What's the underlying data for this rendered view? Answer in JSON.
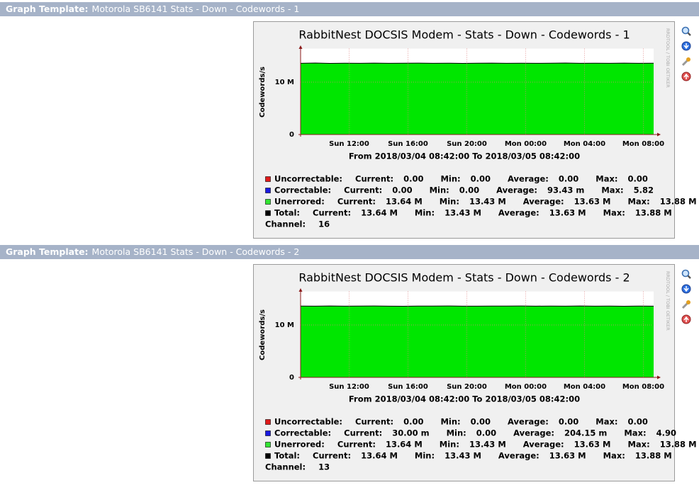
{
  "panels": [
    {
      "header": {
        "label": "Graph Template:",
        "name": "Motorola SB6141 Stats - Down - Codewords - 1"
      },
      "chart_data": {
        "type": "area",
        "title": "RabbitNest DOCSIS Modem - Stats - Down - Codewords - 1",
        "y_label": "Codewords/s",
        "x_label": "From 2018/03/04 08:42:00 To 2018/03/05 08:42:00",
        "watermark": "RRDTOOL / TOBI OETIKER",
        "xlim": [
          0,
          24
        ],
        "xticks": [
          {
            "value": 3.3,
            "label": "Sun 12:00"
          },
          {
            "value": 7.3,
            "label": "Sun 16:00"
          },
          {
            "value": 11.3,
            "label": "Sun 20:00"
          },
          {
            "value": 15.3,
            "label": "Mon 00:00"
          },
          {
            "value": 19.3,
            "label": "Mon 04:00"
          },
          {
            "value": 23.3,
            "label": "Mon 08:00"
          }
        ],
        "ylim": [
          0,
          16000000
        ],
        "yticks": [
          0,
          {
            "value": 10000000,
            "label": "10 M"
          }
        ],
        "grid": true,
        "x": [
          0,
          1,
          2,
          3,
          4,
          5,
          6,
          7,
          8,
          9,
          10,
          11,
          12,
          13,
          14,
          15,
          16,
          17,
          18,
          19,
          20,
          21,
          22,
          23,
          24
        ],
        "series": [
          {
            "color": "#00e600",
            "values": [
              13600000,
              13650000,
              13580000,
              13620000,
              13600000,
              13640000,
              13590000,
              13610000,
              13630000,
              13600000,
              13620000,
              13580000,
              13610000,
              13640000,
              13600000,
              13620000,
              13590000,
              13610000,
              13650000,
              13600000,
              13620000,
              13590000,
              13630000,
              13600000,
              13610000
            ]
          },
          {
            "color": "#000000",
            "values": [
              13600000,
              13650000,
              13580000,
              13620000,
              13600000,
              13640000,
              13590000,
              13610000,
              13630000,
              13600000,
              13620000,
              13580000,
              13610000,
              13640000,
              13600000,
              13620000,
              13590000,
              13610000,
              13650000,
              13600000,
              13620000,
              13590000,
              13630000,
              13600000,
              13610000
            ]
          }
        ]
      },
      "legend": [
        {
          "name": "Uncorrectable:",
          "color": "#e01a1a",
          "stats": [
            [
              "Current:",
              "0.00"
            ],
            [
              "Min:",
              "0.00"
            ],
            [
              "Average:",
              "0.00"
            ],
            [
              "Max:",
              "0.00"
            ]
          ]
        },
        {
          "name": "Correctable:",
          "color": "#1a1ae0",
          "stats": [
            [
              "Current:",
              "0.00"
            ],
            [
              "Min:",
              "0.00"
            ],
            [
              "Average:",
              "93.43 m"
            ],
            [
              "Max:",
              "5.82"
            ]
          ]
        },
        {
          "name": "Unerrored:",
          "color": "#33e533",
          "stats": [
            [
              "Current:",
              "13.64 M"
            ],
            [
              "Min:",
              "13.43 M"
            ],
            [
              "Average:",
              "13.63 M"
            ],
            [
              "Max:",
              "13.88 M"
            ]
          ]
        },
        {
          "name": "Total:",
          "color": "#000000",
          "stats": [
            [
              "Current:",
              "13.64 M"
            ],
            [
              "Min:",
              "13.43 M"
            ],
            [
              "Average:",
              "13.63 M"
            ],
            [
              "Max:",
              "13.88 M"
            ]
          ]
        }
      ],
      "channel": {
        "label": "Channel:",
        "value": "16"
      }
    },
    {
      "header": {
        "label": "Graph Template:",
        "name": "Motorola SB6141 Stats - Down - Codewords - 2"
      },
      "chart_data": {
        "type": "area",
        "title": "RabbitNest DOCSIS Modem - Stats - Down - Codewords - 2",
        "y_label": "Codewords/s",
        "x_label": "From 2018/03/04 08:42:00 To 2018/03/05 08:42:00",
        "watermark": "RRDTOOL / TOBI OETIKER",
        "xlim": [
          0,
          24
        ],
        "xticks": [
          {
            "value": 3.3,
            "label": "Sun 12:00"
          },
          {
            "value": 7.3,
            "label": "Sun 16:00"
          },
          {
            "value": 11.3,
            "label": "Sun 20:00"
          },
          {
            "value": 15.3,
            "label": "Mon 00:00"
          },
          {
            "value": 19.3,
            "label": "Mon 04:00"
          },
          {
            "value": 23.3,
            "label": "Mon 08:00"
          }
        ],
        "ylim": [
          0,
          16000000
        ],
        "yticks": [
          0,
          {
            "value": 10000000,
            "label": "10 M"
          }
        ],
        "grid": true,
        "x": [
          0,
          1,
          2,
          3,
          4,
          5,
          6,
          7,
          8,
          9,
          10,
          11,
          12,
          13,
          14,
          15,
          16,
          17,
          18,
          19,
          20,
          21,
          22,
          23,
          24
        ],
        "series": [
          {
            "color": "#00e600",
            "values": [
              13620000,
              13600000,
              13640000,
              13590000,
              13610000,
              13630000,
              13600000,
              13580000,
              13620000,
              13610000,
              13640000,
              13600000,
              13590000,
              13620000,
              13610000,
              13630000,
              13600000,
              13620000,
              13590000,
              13640000,
              13600000,
              13610000,
              13580000,
              13620000,
              13600000
            ]
          },
          {
            "color": "#000000",
            "values": [
              13620000,
              13600000,
              13640000,
              13590000,
              13610000,
              13630000,
              13600000,
              13580000,
              13620000,
              13610000,
              13640000,
              13600000,
              13590000,
              13620000,
              13610000,
              13630000,
              13600000,
              13620000,
              13590000,
              13640000,
              13600000,
              13610000,
              13580000,
              13620000,
              13600000
            ]
          }
        ]
      },
      "legend": [
        {
          "name": "Uncorrectable:",
          "color": "#e01a1a",
          "stats": [
            [
              "Current:",
              "0.00"
            ],
            [
              "Min:",
              "0.00"
            ],
            [
              "Average:",
              "0.00"
            ],
            [
              "Max:",
              "0.00"
            ]
          ]
        },
        {
          "name": "Correctable:",
          "color": "#1a1ae0",
          "stats": [
            [
              "Current:",
              "30.00 m"
            ],
            [
              "Min:",
              "0.00"
            ],
            [
              "Average:",
              "204.15 m"
            ],
            [
              "Max:",
              "4.90"
            ]
          ]
        },
        {
          "name": "Unerrored:",
          "color": "#33e533",
          "stats": [
            [
              "Current:",
              "13.64 M"
            ],
            [
              "Min:",
              "13.43 M"
            ],
            [
              "Average:",
              "13.63 M"
            ],
            [
              "Max:",
              "13.88 M"
            ]
          ]
        },
        {
          "name": "Total:",
          "color": "#000000",
          "stats": [
            [
              "Current:",
              "13.64 M"
            ],
            [
              "Min:",
              "13.43 M"
            ],
            [
              "Average:",
              "13.63 M"
            ],
            [
              "Max:",
              "13.88 M"
            ]
          ]
        }
      ],
      "channel": {
        "label": "Channel:",
        "value": "13"
      }
    }
  ]
}
